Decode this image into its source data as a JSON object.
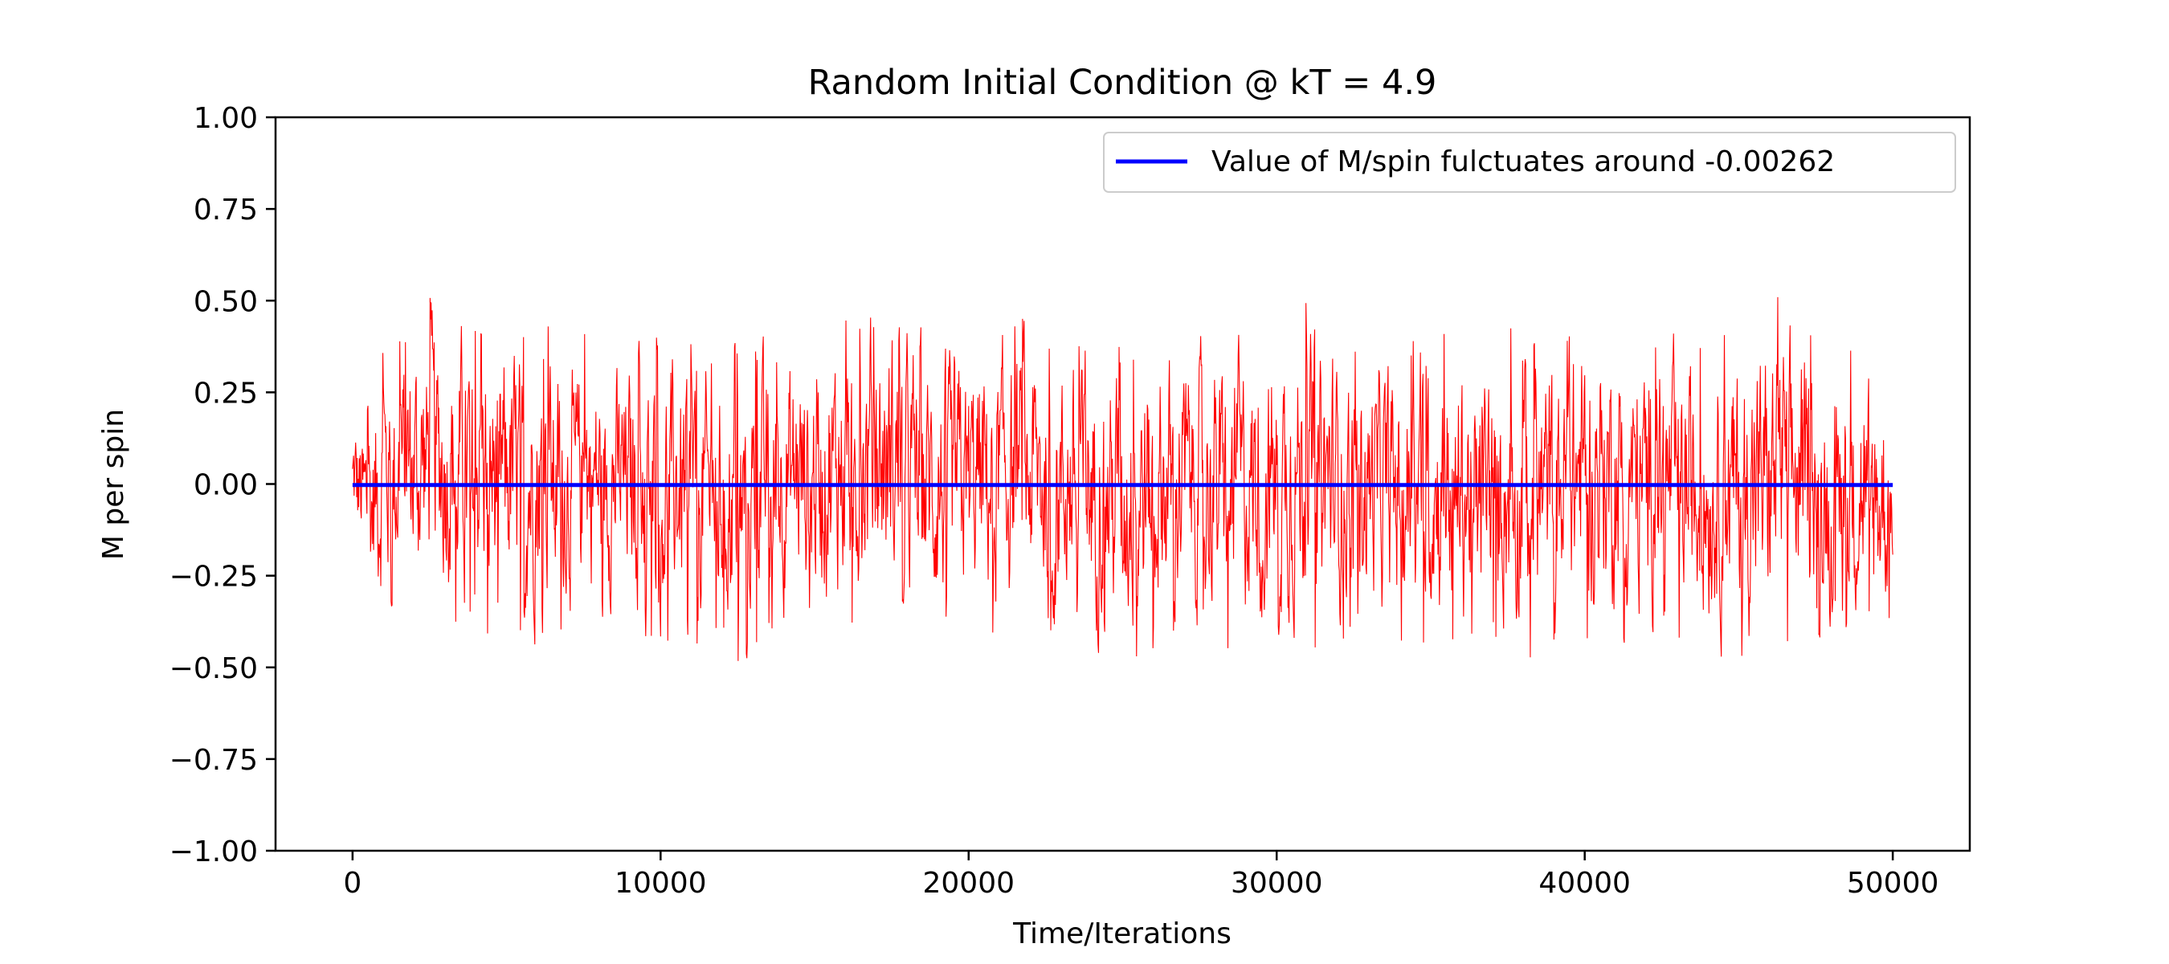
{
  "chart_data": {
    "type": "line",
    "title": "Random Initial Condition @ kT = 4.9",
    "xlabel": "Time/Iterations",
    "ylabel": "M per spin",
    "xlim": [
      -2500,
      52500
    ],
    "ylim": [
      -1.0,
      1.0
    ],
    "x_ticks": [
      0,
      10000,
      20000,
      30000,
      40000,
      50000
    ],
    "x_tick_labels": [
      "0",
      "10000",
      "20000",
      "30000",
      "40000",
      "50000"
    ],
    "y_ticks": [
      1.0,
      0.75,
      0.5,
      0.25,
      0.0,
      -0.25,
      -0.5,
      -0.75,
      -1.0
    ],
    "y_tick_labels": [
      "1.00",
      "0.75",
      "0.50",
      "0.25",
      "0.00",
      "−0.25",
      "−0.50",
      "−0.75",
      "−1.00"
    ],
    "grid": false,
    "legend": {
      "location": "upper right",
      "entries": [
        "Value of M/spin fulctuates around -0.00262"
      ]
    },
    "series": [
      {
        "color": "#ff0000",
        "style": "thin-line",
        "x_start": 0,
        "x_end": 50000,
        "envelope": [
          {
            "x": 0,
            "max": 0.23,
            "min": -0.2
          },
          {
            "x": 500,
            "max": 0.26,
            "min": -0.42
          },
          {
            "x": 1000,
            "max": 0.41,
            "min": -0.38
          },
          {
            "x": 2500,
            "max": 0.51,
            "min": -0.37
          },
          {
            "x": 4000,
            "max": 0.5,
            "min": -0.4
          },
          {
            "x": 6000,
            "max": 0.45,
            "min": -0.44
          },
          {
            "x": 8000,
            "max": 0.4,
            "min": -0.38
          },
          {
            "x": 10000,
            "max": 0.43,
            "min": -0.43
          },
          {
            "x": 12800,
            "max": 0.38,
            "min": -0.49
          },
          {
            "x": 13500,
            "max": 0.43,
            "min": -0.4
          },
          {
            "x": 17500,
            "max": 0.53,
            "min": -0.4
          },
          {
            "x": 19000,
            "max": 0.42,
            "min": -0.45
          },
          {
            "x": 21500,
            "max": 0.47,
            "min": -0.4
          },
          {
            "x": 25000,
            "max": 0.42,
            "min": -0.49
          },
          {
            "x": 27000,
            "max": 0.46,
            "min": -0.42
          },
          {
            "x": 28500,
            "max": 0.42,
            "min": -0.45
          },
          {
            "x": 30500,
            "max": 0.51,
            "min": -0.46
          },
          {
            "x": 33000,
            "max": 0.42,
            "min": -0.43
          },
          {
            "x": 35500,
            "max": 0.42,
            "min": -0.47
          },
          {
            "x": 39000,
            "max": 0.44,
            "min": -0.48
          },
          {
            "x": 40000,
            "max": 0.51,
            "min": -0.42
          },
          {
            "x": 42000,
            "max": 0.45,
            "min": -0.44
          },
          {
            "x": 44500,
            "max": 0.42,
            "min": -0.48
          },
          {
            "x": 46200,
            "max": 0.53,
            "min": -0.49
          },
          {
            "x": 48000,
            "max": 0.41,
            "min": -0.4
          },
          {
            "x": 49700,
            "max": 0.4,
            "min": -0.48
          },
          {
            "x": 50000,
            "max": 0.26,
            "min": -0.3
          }
        ]
      },
      {
        "name": "Value of M/spin fulctuates around -0.00262",
        "color": "#0000ff",
        "style": "thick-line",
        "x": [
          0,
          50000
        ],
        "y": [
          -0.00262,
          -0.00262
        ]
      }
    ]
  }
}
